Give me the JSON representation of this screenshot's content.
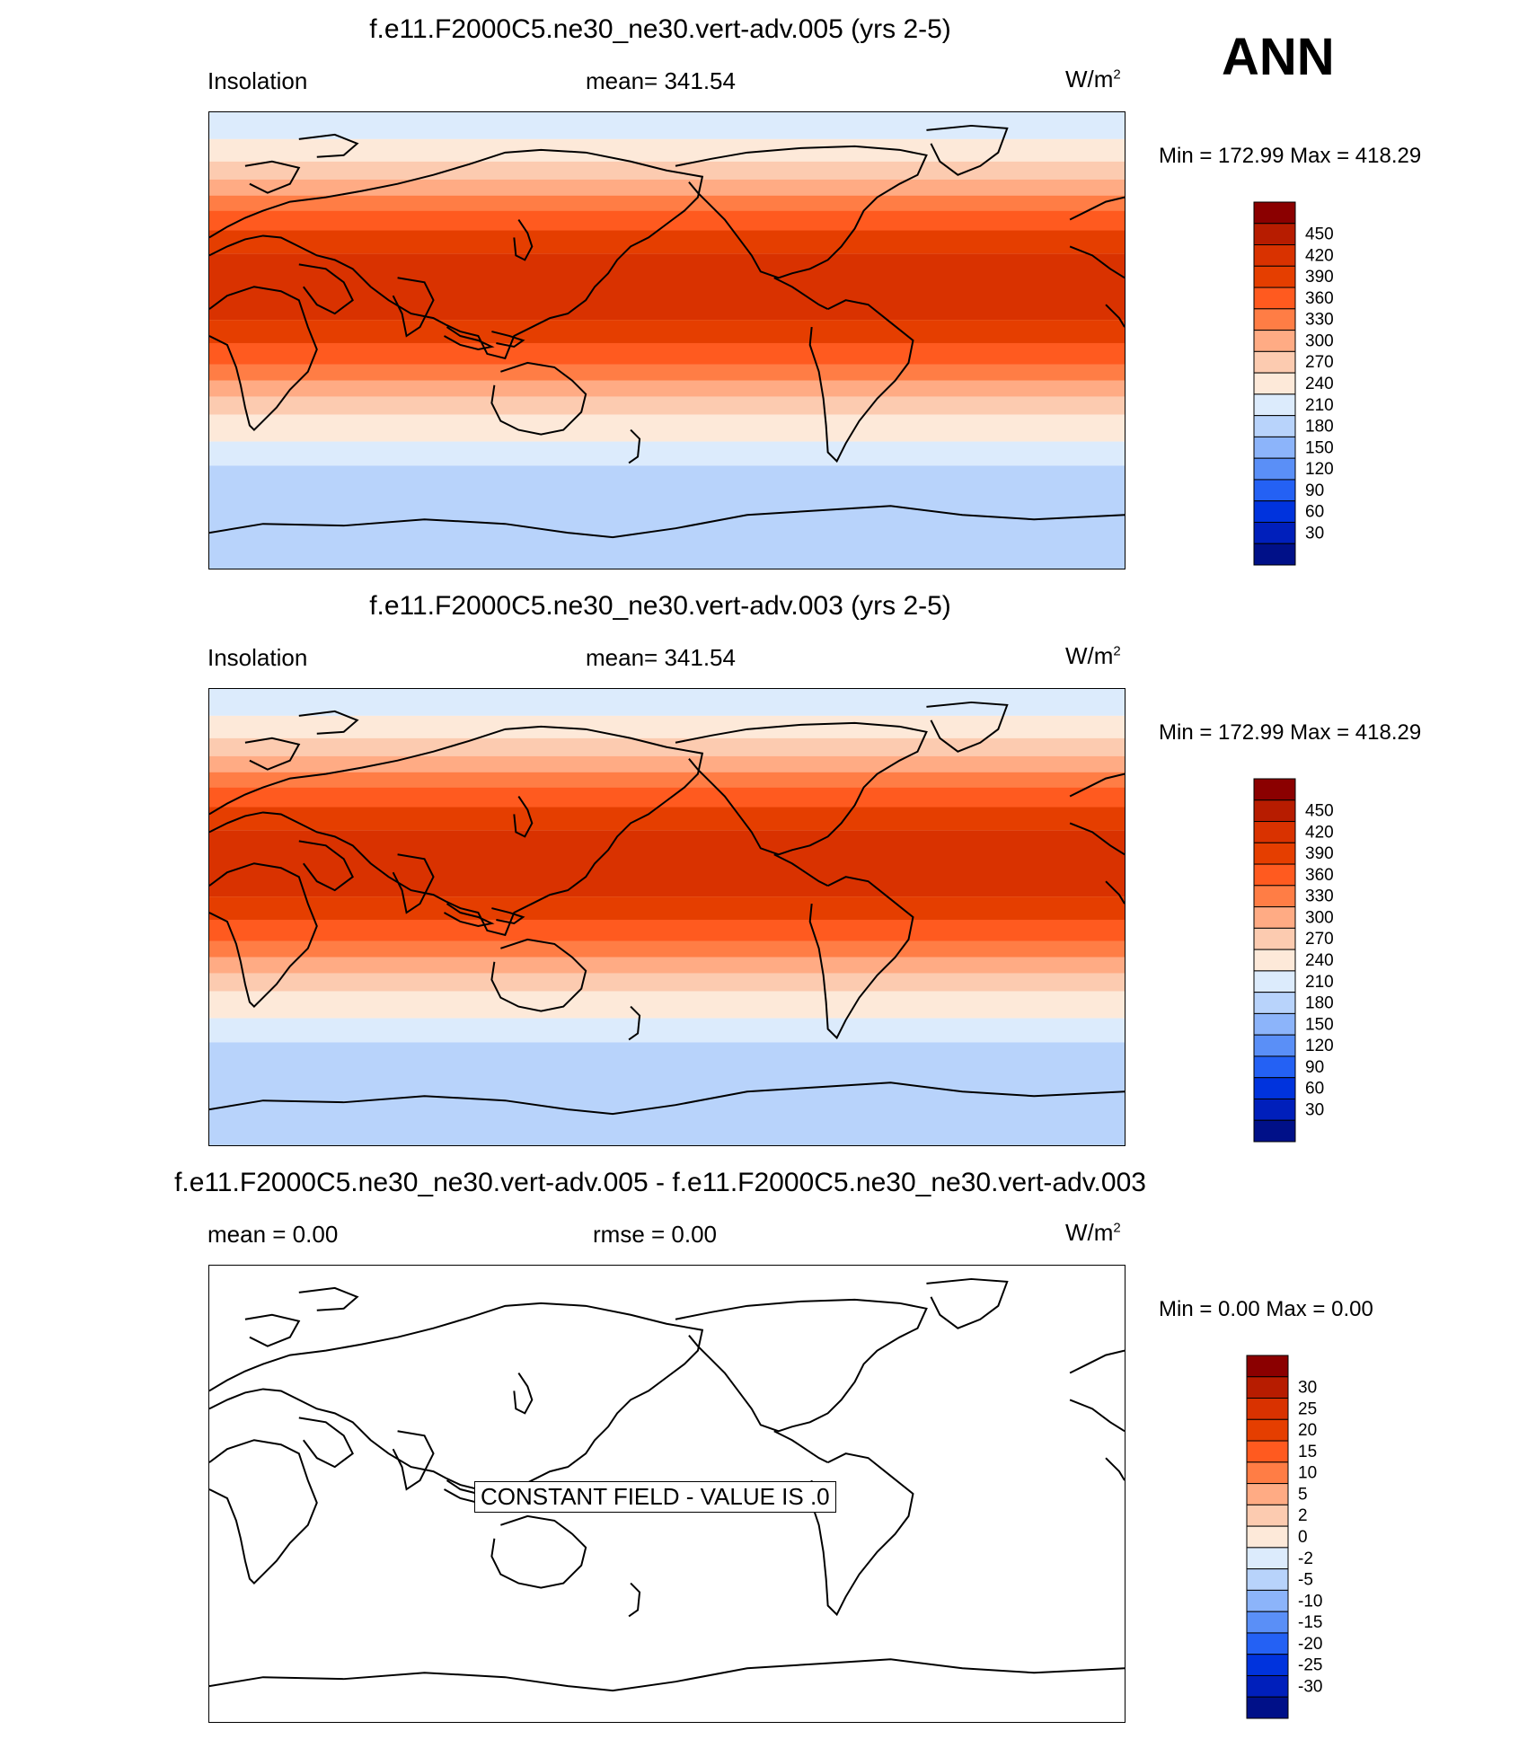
{
  "season": "ANN",
  "panels": [
    {
      "title": "f.e11.F2000C5.ne30_ne30.vert-adv.005 (yrs 2-5)",
      "left_label": "Insolation",
      "center_label": "mean= 341.54",
      "unit_base": "W/m",
      "unit_sup": "2",
      "minmax": "Min = 172.99 Max = 418.29"
    },
    {
      "title": "f.e11.F2000C5.ne30_ne30.vert-adv.003 (yrs 2-5)",
      "left_label": "Insolation",
      "center_label": "mean= 341.54",
      "unit_base": "W/m",
      "unit_sup": "2",
      "minmax": "Min = 172.99 Max = 418.29"
    },
    {
      "title": "f.e11.F2000C5.ne30_ne30.vert-adv.005 - f.e11.F2000C5.ne30_ne30.vert-adv.003",
      "left_label": "mean =   0.00",
      "center_label": "rmse =   0.00",
      "unit_base": "W/m",
      "unit_sup": "2",
      "minmax": "Min =   0.00 Max =   0.00",
      "constant_note": "CONSTANT FIELD - VALUE IS .0"
    }
  ],
  "colorbar_main": {
    "labels": [
      "450",
      "420",
      "390",
      "360",
      "330",
      "300",
      "270",
      "240",
      "210",
      "180",
      "150",
      "120",
      "90",
      "60",
      "30"
    ],
    "colors": [
      "#8b0000",
      "#b71c00",
      "#d93200",
      "#e53e00",
      "#ff5a1f",
      "#ff7d45",
      "#ffab84",
      "#fccbb0",
      "#fde9d9",
      "#dcebfc",
      "#b8d3fb",
      "#8cb4fa",
      "#5a8ff7",
      "#2461f4",
      "#0033dd",
      "#001fbb",
      "#001088"
    ]
  },
  "colorbar_diff": {
    "labels": [
      "30",
      "25",
      "20",
      "15",
      "10",
      "5",
      "2",
      "0",
      "-2",
      "-5",
      "-10",
      "-15",
      "-20",
      "-25",
      "-30"
    ],
    "colors": [
      "#8b0000",
      "#b71c00",
      "#d93200",
      "#e53e00",
      "#ff5a1f",
      "#ff7d45",
      "#ffab84",
      "#fccbb0",
      "#fde9d9",
      "#dcebfc",
      "#b8d3fb",
      "#8cb4fa",
      "#5a8ff7",
      "#2461f4",
      "#0033dd",
      "#001fbb",
      "#001088"
    ]
  },
  "map_bands": {
    "note_values_wm2_by_latitude_band_north_to_south": [
      190,
      215,
      250,
      285,
      320,
      355,
      385,
      410,
      385,
      355,
      320,
      285,
      250,
      215,
      190,
      175
    ]
  }
}
